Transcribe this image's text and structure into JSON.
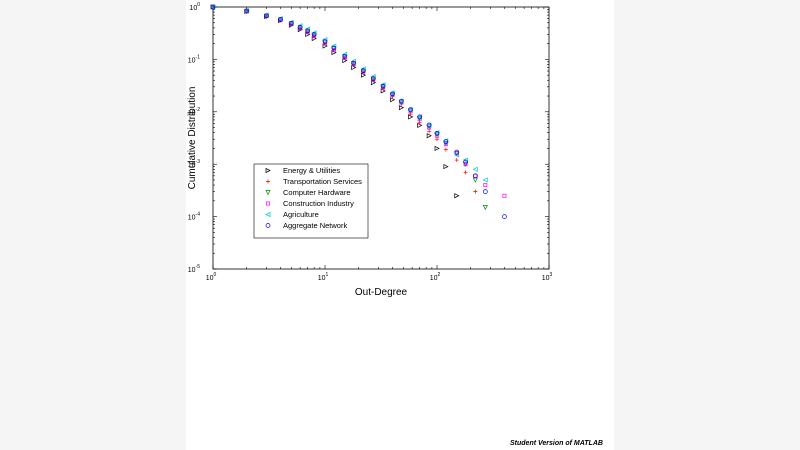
{
  "watermark": "Student Version of MATLAB",
  "chart_data": {
    "type": "scatter",
    "title": "",
    "xlabel": "Out-Degree",
    "ylabel": "Cumulative Distribution",
    "xscale": "log",
    "yscale": "log",
    "xlim": [
      1,
      1000
    ],
    "ylim": [
      1e-05,
      1
    ],
    "x_ticks": [
      {
        "base": "10",
        "exp": "0",
        "value": 1
      },
      {
        "base": "10",
        "exp": "1",
        "value": 10
      },
      {
        "base": "10",
        "exp": "2",
        "value": 100
      },
      {
        "base": "10",
        "exp": "3",
        "value": 1000
      }
    ],
    "y_ticks": [
      {
        "base": "10",
        "exp": "0",
        "value": 1
      },
      {
        "base": "10",
        "exp": "-1",
        "value": 0.1
      },
      {
        "base": "10",
        "exp": "-2",
        "value": 0.01
      },
      {
        "base": "10",
        "exp": "-3",
        "value": 0.001
      },
      {
        "base": "10",
        "exp": "-4",
        "value": 0.0001
      },
      {
        "base": "10",
        "exp": "-5",
        "value": 1e-05
      }
    ],
    "grid": false,
    "legend_position": "lower-left",
    "series": [
      {
        "name": "Energy & Utilities",
        "marker": "triangle-right",
        "color": "#000000",
        "x": [
          1,
          2,
          3,
          4,
          5,
          6,
          7,
          8,
          10,
          12,
          15,
          18,
          22,
          27,
          33,
          40,
          48,
          58,
          70,
          85,
          100,
          120,
          150
        ],
        "y": [
          1,
          0.82,
          0.66,
          0.55,
          0.45,
          0.37,
          0.3,
          0.25,
          0.18,
          0.135,
          0.095,
          0.07,
          0.05,
          0.036,
          0.025,
          0.017,
          0.012,
          0.008,
          0.0055,
          0.0035,
          0.002,
          0.0009,
          0.00025
        ]
      },
      {
        "name": "Transportation Services",
        "marker": "plus",
        "color": "#ff0000",
        "x": [
          1,
          2,
          3,
          4,
          5,
          6,
          7,
          8,
          10,
          12,
          15,
          18,
          22,
          27,
          33,
          40,
          48,
          58,
          70,
          85,
          100,
          120,
          150,
          180,
          220
        ],
        "y": [
          1,
          0.82,
          0.66,
          0.56,
          0.47,
          0.39,
          0.33,
          0.28,
          0.2,
          0.15,
          0.105,
          0.078,
          0.056,
          0.04,
          0.028,
          0.02,
          0.014,
          0.009,
          0.0062,
          0.0042,
          0.003,
          0.0019,
          0.0012,
          0.0007,
          0.0003
        ]
      },
      {
        "name": "Computer Hardware",
        "marker": "triangle-down",
        "color": "#008800",
        "x": [
          1,
          2,
          3,
          4,
          5,
          6,
          7,
          8,
          10,
          12,
          15,
          18,
          22,
          27,
          33,
          40,
          48,
          58,
          70,
          85,
          100,
          120,
          150,
          180,
          220,
          270
        ],
        "y": [
          1,
          0.83,
          0.67,
          0.57,
          0.48,
          0.4,
          0.34,
          0.29,
          0.21,
          0.16,
          0.11,
          0.082,
          0.059,
          0.042,
          0.03,
          0.021,
          0.015,
          0.0105,
          0.0075,
          0.0052,
          0.0037,
          0.0025,
          0.0016,
          0.001,
          0.0005,
          0.00015
        ]
      },
      {
        "name": "Construction Industry",
        "marker": "square",
        "color": "#ff00ff",
        "x": [
          1,
          2,
          3,
          4,
          5,
          6,
          7,
          8,
          10,
          12,
          15,
          18,
          22,
          27,
          33,
          40,
          48,
          58,
          70,
          85,
          100,
          120,
          150,
          180,
          220,
          270,
          400
        ],
        "y": [
          1,
          0.82,
          0.67,
          0.56,
          0.47,
          0.39,
          0.33,
          0.28,
          0.2,
          0.15,
          0.107,
          0.08,
          0.058,
          0.041,
          0.029,
          0.021,
          0.015,
          0.0102,
          0.0072,
          0.005,
          0.0035,
          0.0024,
          0.0016,
          0.001,
          0.0006,
          0.0004,
          0.00025
        ]
      },
      {
        "name": "Agriculture",
        "marker": "triangle-left",
        "color": "#00cccc",
        "x": [
          1,
          2,
          3,
          4,
          5,
          6,
          7,
          8,
          10,
          12,
          15,
          18,
          22,
          27,
          33,
          40,
          48,
          58,
          70,
          85,
          100,
          120,
          150,
          180,
          220,
          270
        ],
        "y": [
          1,
          0.85,
          0.7,
          0.6,
          0.51,
          0.44,
          0.38,
          0.32,
          0.24,
          0.18,
          0.125,
          0.092,
          0.066,
          0.047,
          0.033,
          0.023,
          0.016,
          0.011,
          0.008,
          0.0055,
          0.004,
          0.0028,
          0.0015,
          0.0012,
          0.0008,
          0.0005
        ]
      },
      {
        "name": "Aggregate Network",
        "marker": "circle",
        "color": "#0000ff",
        "x": [
          1,
          2,
          3,
          4,
          5,
          6,
          7,
          8,
          10,
          12,
          15,
          18,
          22,
          27,
          33,
          40,
          48,
          58,
          70,
          85,
          100,
          120,
          150,
          180,
          220,
          270,
          400
        ],
        "y": [
          1,
          0.84,
          0.68,
          0.58,
          0.49,
          0.41,
          0.35,
          0.3,
          0.22,
          0.165,
          0.115,
          0.085,
          0.061,
          0.043,
          0.031,
          0.022,
          0.016,
          0.011,
          0.008,
          0.0056,
          0.0039,
          0.0027,
          0.0017,
          0.0011,
          0.0006,
          0.0003,
          0.0001
        ]
      }
    ]
  }
}
